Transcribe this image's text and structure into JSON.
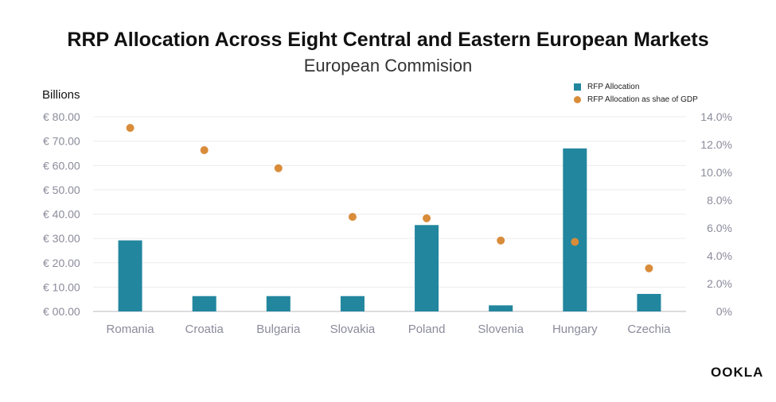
{
  "chart_data": {
    "type": "bar",
    "title": "RRP Allocation Across Eight Central and Eastern European Markets",
    "subtitle": "European Commision",
    "units_label": "Billions",
    "categories": [
      "Romania",
      "Croatia",
      "Bulgaria",
      "Slovakia",
      "Poland",
      "Slovenia",
      "Hungary",
      "Czechia"
    ],
    "series": [
      {
        "name": "RFP Allocation",
        "kind": "bar",
        "axis": "left",
        "color": "#22869e",
        "values": [
          29.2,
          6.3,
          6.3,
          6.3,
          35.5,
          2.5,
          67.0,
          7.2
        ]
      },
      {
        "name": "RFP Allocation as shae of GDP",
        "kind": "scatter",
        "axis": "right",
        "color": "#d98c3a",
        "values": [
          13.2,
          11.6,
          10.3,
          6.8,
          6.7,
          5.1,
          5.0,
          3.1
        ]
      }
    ],
    "y_left": {
      "ylim": [
        0,
        80
      ],
      "ticks": [
        0,
        10,
        20,
        30,
        40,
        50,
        60,
        70,
        80
      ],
      "tick_labels": [
        "€ 00.00",
        "€ 10.00",
        "€ 20.00",
        "€ 30.00",
        "€ 40.00",
        "€ 50.00",
        "€ 60.00",
        "€ 70.00",
        "€ 80.00"
      ]
    },
    "y_right": {
      "ylim": [
        0,
        14
      ],
      "ticks": [
        0,
        2,
        4,
        6,
        8,
        10,
        12,
        14
      ],
      "tick_labels": [
        "0%",
        "2.0%",
        "4.0%",
        "6.0%",
        "8.0%",
        "10.0%",
        "12.0%",
        "14.0%"
      ]
    },
    "grid": true,
    "legend_position": "top-right"
  },
  "logo_text": "OOKLA"
}
